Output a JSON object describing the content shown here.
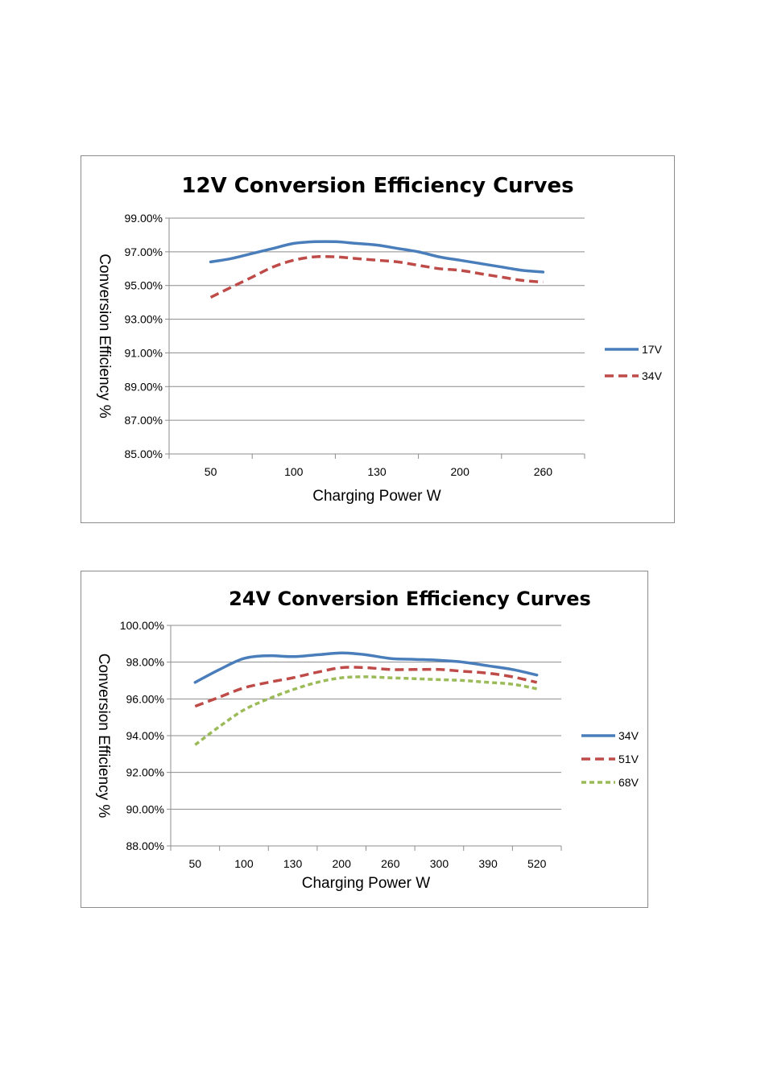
{
  "chart_data": [
    {
      "type": "line",
      "title": "12V Conversion Efficiency Curves",
      "xlabel": "Charging Power W",
      "ylabel": "Conversion Efficiency %",
      "categories": [
        "50",
        "100",
        "130",
        "200",
        "260"
      ],
      "ylim": [
        85,
        99
      ],
      "yticks": [
        "85.00%",
        "87.00%",
        "89.00%",
        "91.00%",
        "93.00%",
        "95.00%",
        "97.00%",
        "99.00%"
      ],
      "grid": "horizontal",
      "legend": "right",
      "series": [
        {
          "name": "17V",
          "color": "#4a7ebb",
          "style": "solid",
          "x": [
            0,
            0.25,
            0.5,
            0.75,
            1.0,
            1.25,
            1.5,
            1.75,
            2.0,
            2.25,
            2.5,
            2.75,
            3.0,
            3.25,
            3.5,
            3.75,
            4.0
          ],
          "values": [
            96.4,
            96.6,
            96.9,
            97.2,
            97.5,
            97.6,
            97.6,
            97.5,
            97.4,
            97.2,
            97.0,
            96.7,
            96.5,
            96.3,
            96.1,
            95.9,
            95.8
          ]
        },
        {
          "name": "34V",
          "color": "#be4b48",
          "style": "dashed",
          "x": [
            0,
            0.25,
            0.5,
            0.75,
            1.0,
            1.25,
            1.5,
            1.75,
            2.0,
            2.25,
            2.5,
            2.75,
            3.0,
            3.25,
            3.5,
            3.75,
            4.0
          ],
          "values": [
            94.3,
            94.9,
            95.5,
            96.1,
            96.5,
            96.7,
            96.7,
            96.6,
            96.5,
            96.4,
            96.2,
            96.0,
            95.9,
            95.7,
            95.5,
            95.3,
            95.2
          ]
        }
      ]
    },
    {
      "type": "line",
      "title": "24V Conversion Efficiency Curves",
      "xlabel": "Charging Power W",
      "ylabel": "Conversion Efficiency %",
      "categories": [
        "50",
        "100",
        "130",
        "200",
        "260",
        "300",
        "390",
        "520"
      ],
      "ylim": [
        88,
        100
      ],
      "yticks": [
        "88.00%",
        "90.00%",
        "92.00%",
        "94.00%",
        "96.00%",
        "98.00%",
        "100.00%"
      ],
      "grid": "horizontal",
      "legend": "right",
      "series": [
        {
          "name": "34V",
          "color": "#4a7ebb",
          "style": "solid",
          "x": [
            0,
            0.5,
            1.0,
            1.5,
            2.0,
            2.5,
            3.0,
            3.5,
            4.0,
            4.5,
            5.0,
            5.5,
            6.0,
            6.5,
            7.0
          ],
          "values": [
            96.9,
            97.6,
            98.2,
            98.35,
            98.3,
            98.4,
            98.5,
            98.4,
            98.2,
            98.15,
            98.1,
            98.0,
            97.8,
            97.6,
            97.3
          ]
        },
        {
          "name": "51V",
          "color": "#be4b48",
          "style": "dashed",
          "x": [
            0,
            0.5,
            1.0,
            1.5,
            2.0,
            2.5,
            3.0,
            3.5,
            4.0,
            4.5,
            5.0,
            5.5,
            6.0,
            6.5,
            7.0
          ],
          "values": [
            95.6,
            96.1,
            96.6,
            96.9,
            97.15,
            97.45,
            97.7,
            97.7,
            97.6,
            97.6,
            97.6,
            97.5,
            97.4,
            97.2,
            96.9
          ]
        },
        {
          "name": "68V",
          "color": "#9bbb59",
          "style": "dotted",
          "x": [
            0,
            0.5,
            1.0,
            1.5,
            2.0,
            2.5,
            3.0,
            3.5,
            4.0,
            4.5,
            5.0,
            5.5,
            6.0,
            6.5,
            7.0
          ],
          "values": [
            93.5,
            94.5,
            95.4,
            96.0,
            96.5,
            96.9,
            97.15,
            97.2,
            97.15,
            97.1,
            97.05,
            97.0,
            96.9,
            96.8,
            96.55
          ]
        }
      ]
    }
  ]
}
